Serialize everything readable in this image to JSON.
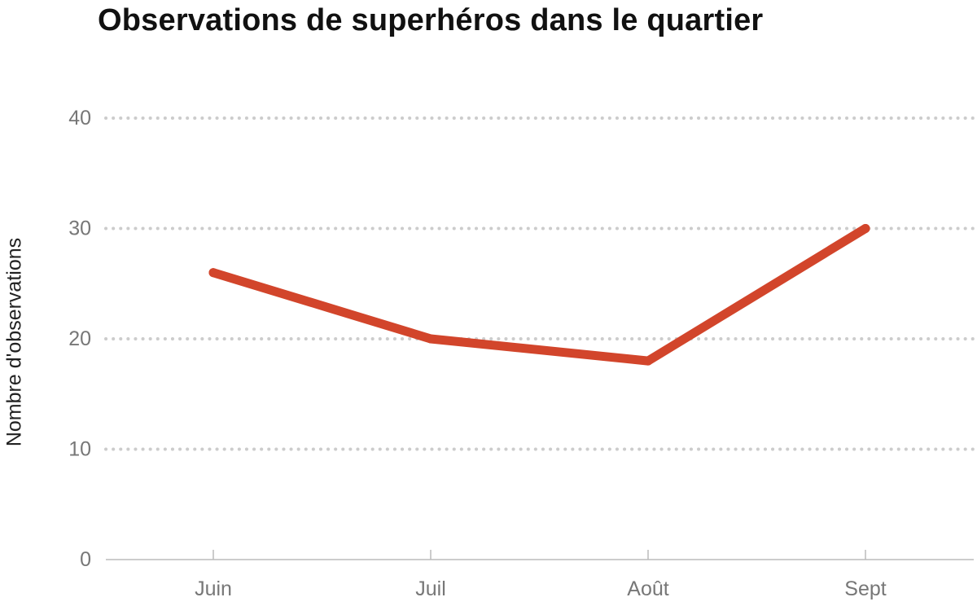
{
  "chart_data": {
    "type": "line",
    "title": "Observations de superhéros dans le quartier",
    "xlabel": "",
    "ylabel": "Nombre d'observations",
    "categories": [
      "Juin",
      "Juil",
      "Août",
      "Sept"
    ],
    "series": [
      {
        "values": [
          26,
          20,
          18,
          30
        ]
      }
    ],
    "ylim": [
      0,
      40
    ],
    "yticks": [
      0,
      10,
      20,
      30,
      40
    ],
    "grid": true,
    "legend": "none",
    "colors": {
      "line": "#d2452b",
      "grid": "#cccccc",
      "axis": "#bbbbbb",
      "tick_text": "#777777"
    }
  }
}
